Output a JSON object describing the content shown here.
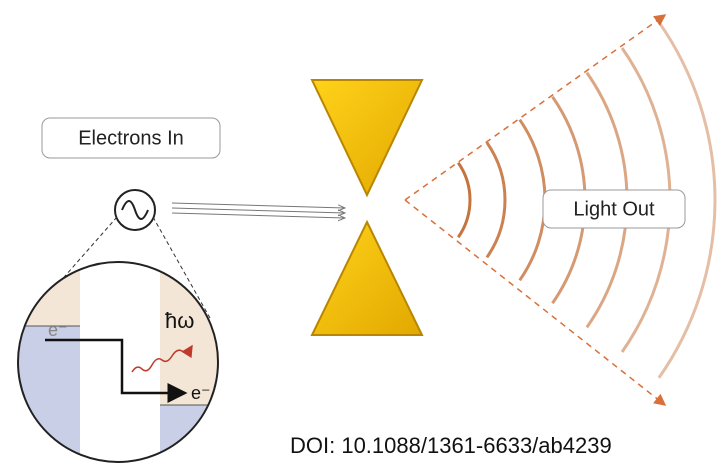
{
  "labels": {
    "input": "Electrons In",
    "output": "Light Out",
    "photon": "ħω",
    "electron_left": "e⁻",
    "electron_right": "e⁻"
  },
  "doi": "DOI: 10.1088/1361-6633/ab4239"
}
